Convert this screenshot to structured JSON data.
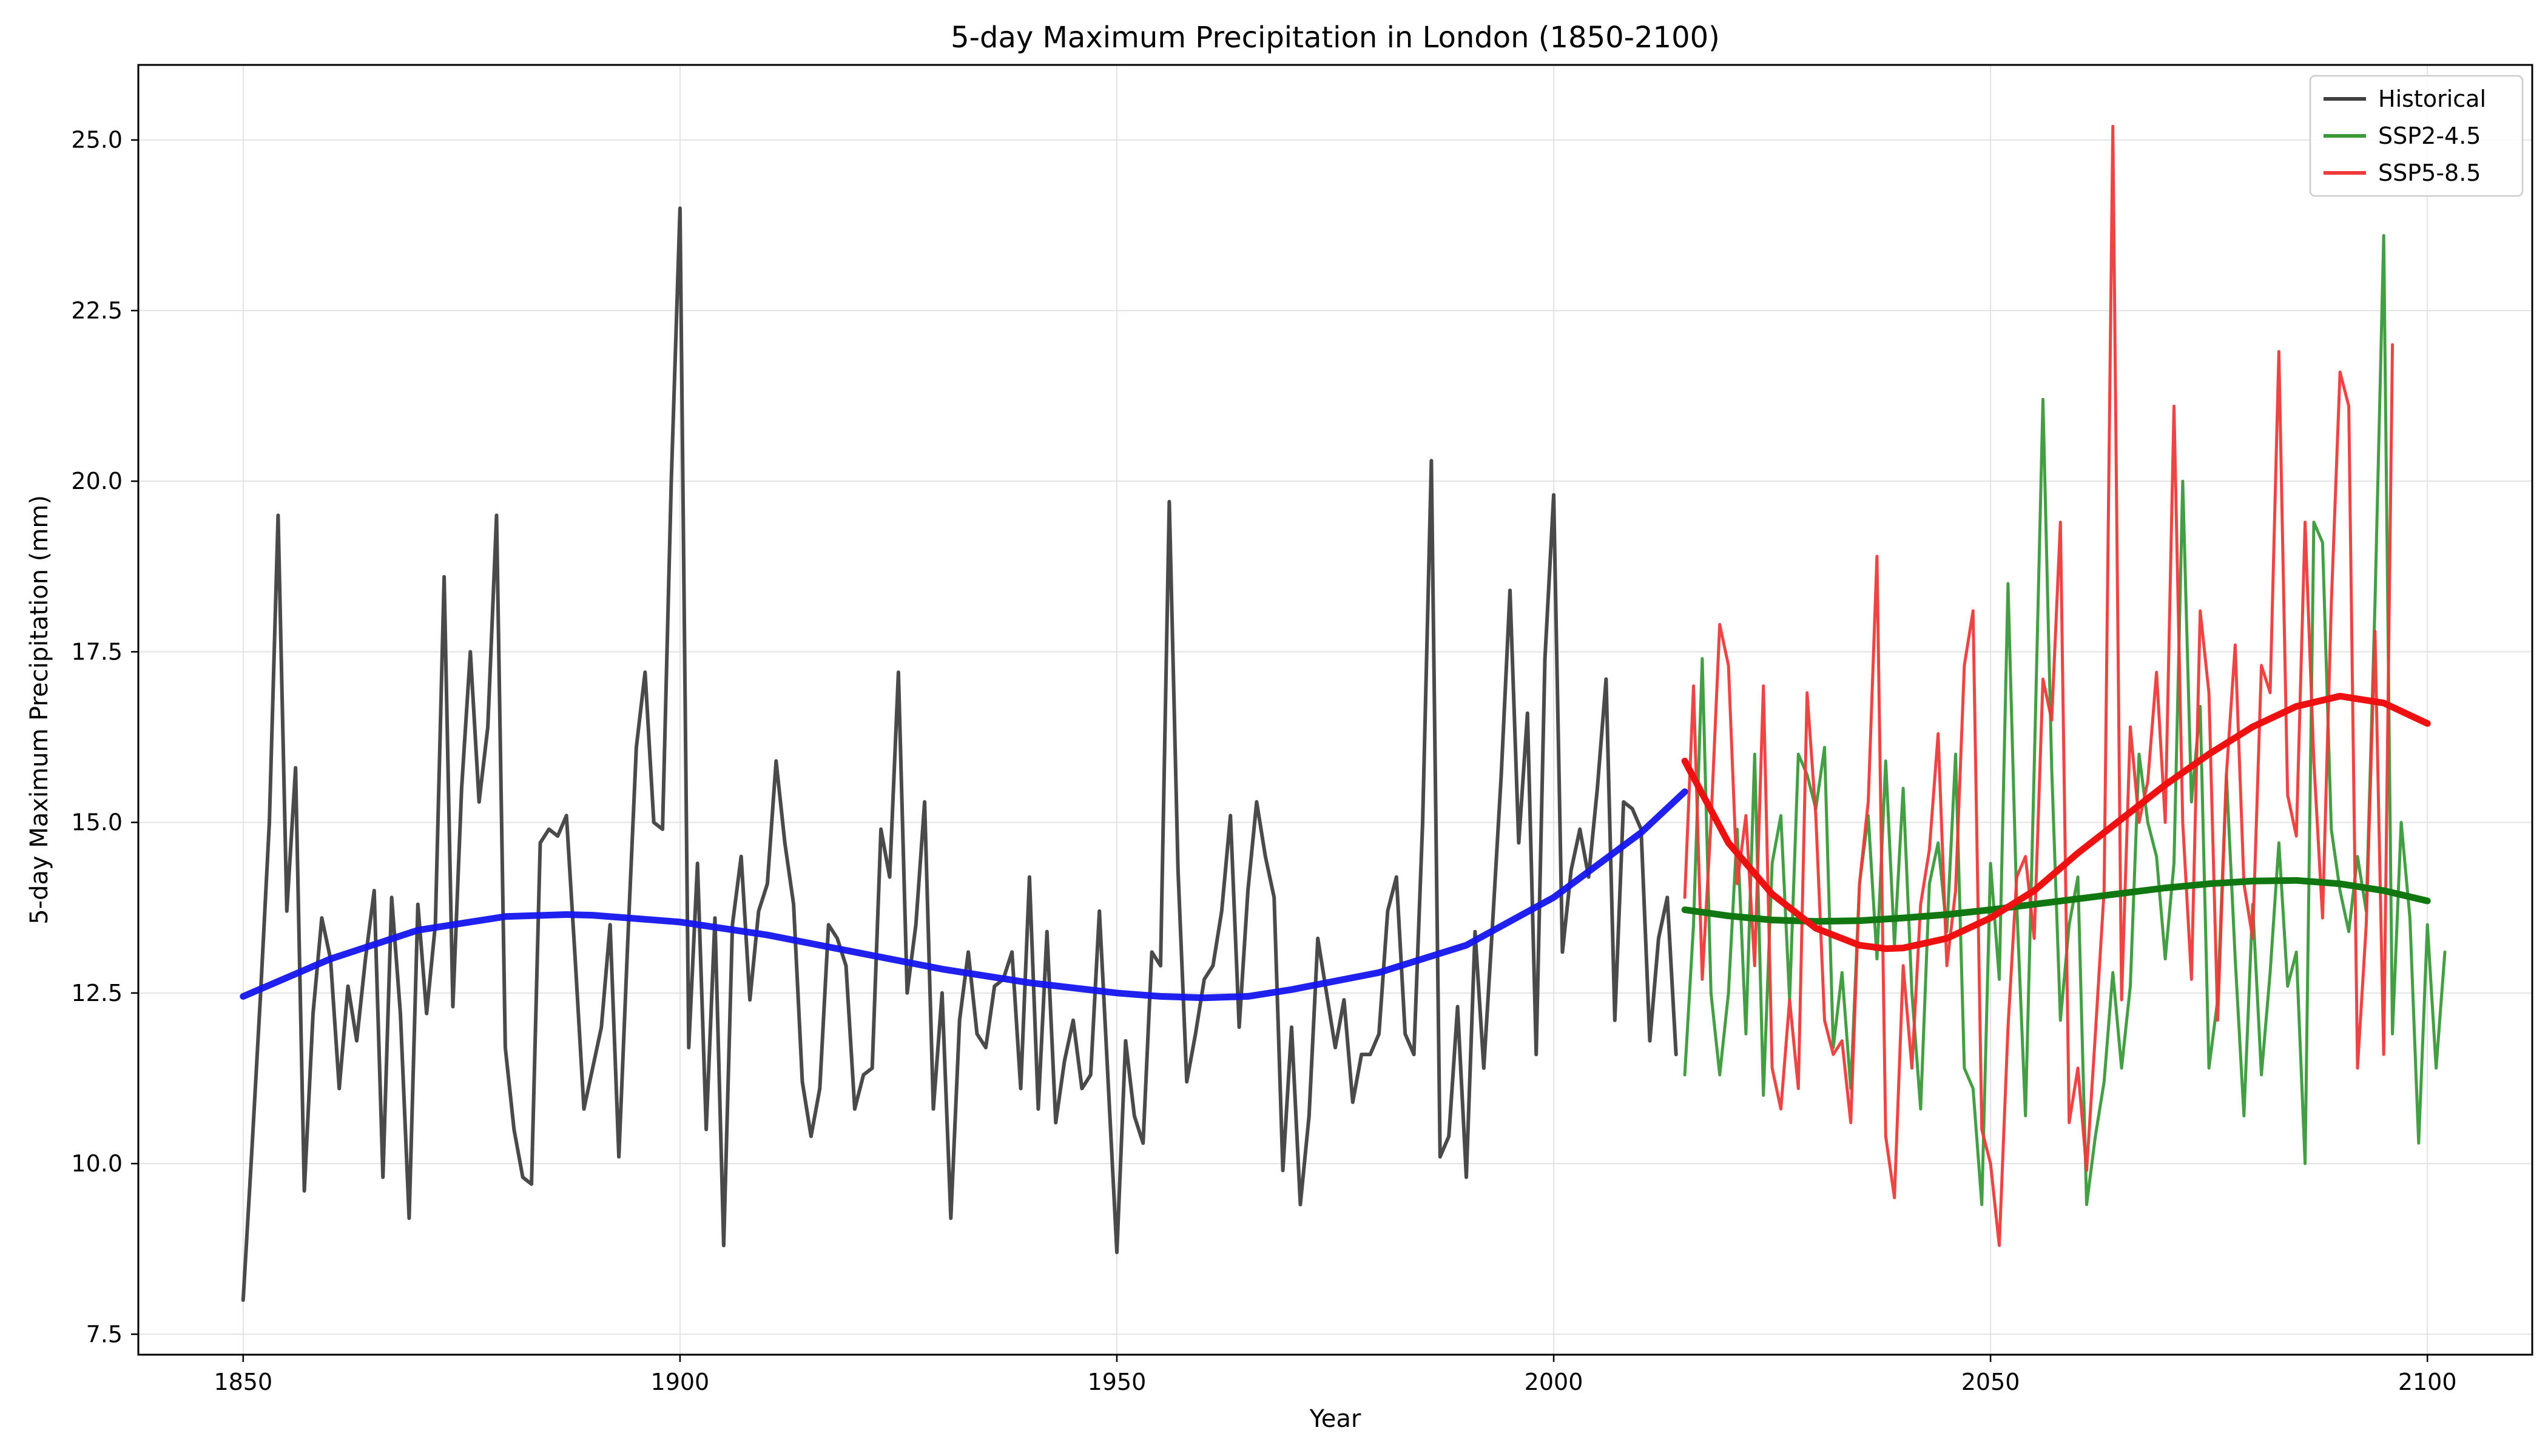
{
  "chart_data": {
    "type": "line",
    "title": "5-day Maximum Precipitation in London (1850-2100)",
    "xlabel": "Year",
    "ylabel": "5-day Maximum Precipitation (mm)",
    "xlim": [
      1838,
      2112
    ],
    "ylim": [
      7.2,
      26.1
    ],
    "xticks": [
      1850,
      1900,
      1950,
      2000,
      2050,
      2100
    ],
    "xtick_labels": [
      "1850",
      "1900",
      "1950",
      "2000",
      "2050",
      "2100"
    ],
    "yticks": [
      7.5,
      10.0,
      12.5,
      15.0,
      17.5,
      20.0,
      22.5,
      25.0
    ],
    "ytick_labels": [
      "7.5",
      "10.0",
      "12.5",
      "15.0",
      "17.5",
      "20.0",
      "22.5",
      "25.0"
    ],
    "grid": true,
    "legend_position": "top-right",
    "legend": [
      {
        "label": "Historical",
        "color": "#404040"
      },
      {
        "label": "SSP2-4.5",
        "color": "#3a9a3a"
      },
      {
        "label": "SSP5-8.5",
        "color": "#ee3a3a"
      }
    ],
    "series": [
      {
        "name": "Historical",
        "color": "#404040",
        "x_start": 1850,
        "x_step": 1,
        "values": [
          8.0,
          10.2,
          12.5,
          15.0,
          19.5,
          13.7,
          15.8,
          9.6,
          12.2,
          13.6,
          13.0,
          11.1,
          12.6,
          11.8,
          13.0,
          14.0,
          9.8,
          13.9,
          12.2,
          9.2,
          13.8,
          12.2,
          13.5,
          18.6,
          12.3,
          15.5,
          17.5,
          15.3,
          16.4,
          19.5,
          11.7,
          10.5,
          9.8,
          9.7,
          14.7,
          14.9,
          14.8,
          15.1,
          13.0,
          10.8,
          11.4,
          12.0,
          13.5,
          10.1,
          13.2,
          16.1,
          17.2,
          15.0,
          14.9,
          20.0,
          24.0,
          11.7,
          14.4,
          10.5,
          13.6,
          8.8,
          13.5,
          14.5,
          12.4,
          13.7,
          14.1,
          15.9,
          14.7,
          13.8,
          11.2,
          10.4,
          11.1,
          13.5,
          13.3,
          12.9,
          10.8,
          11.3,
          11.4,
          14.9,
          14.2,
          17.2,
          12.5,
          13.5,
          15.3,
          10.8,
          12.5,
          9.2,
          12.1,
          13.1,
          11.9,
          11.7,
          12.6,
          12.7,
          13.1,
          11.1,
          14.2,
          10.8,
          13.4,
          10.6,
          11.5,
          12.1,
          11.1,
          11.3,
          13.7,
          11.2,
          8.7,
          11.8,
          10.7,
          10.3,
          13.1,
          12.9,
          19.7,
          14.3,
          11.2,
          11.9,
          12.7,
          12.9,
          13.7,
          15.1,
          12.0,
          14.0,
          15.3,
          14.5,
          13.9,
          9.9,
          12.0,
          9.4,
          10.7,
          13.3,
          12.5,
          11.7,
          12.4,
          10.9,
          11.6,
          11.6,
          11.9,
          13.7,
          14.2,
          11.9,
          11.6,
          15.0,
          20.3,
          10.1,
          10.4,
          12.3,
          9.8,
          13.4,
          11.4,
          13.5,
          15.7,
          18.4,
          14.7,
          16.6,
          11.6,
          17.4,
          19.8,
          13.1,
          14.3,
          14.9,
          14.2,
          15.5,
          17.1,
          12.1,
          15.3,
          15.2,
          14.9,
          11.8,
          13.3,
          13.9,
          11.6
        ]
      },
      {
        "name": "SSP2-4.5",
        "color": "#3a9a3a",
        "x_start": 2015,
        "x_step": 1,
        "values": [
          11.3,
          13.5,
          17.4,
          12.5,
          11.3,
          12.5,
          14.9,
          11.9,
          16.0,
          11.0,
          14.4,
          15.1,
          12.4,
          16.0,
          15.7,
          15.2,
          16.1,
          11.7,
          12.8,
          11.1,
          14.1,
          15.1,
          13.0,
          15.9,
          13.2,
          15.5,
          12.5,
          10.8,
          14.1,
          14.7,
          13.4,
          16.0,
          11.4,
          11.1,
          9.4,
          14.4,
          12.7,
          18.5,
          13.8,
          10.7,
          15.8,
          21.2,
          15.8,
          12.1,
          13.5,
          14.2,
          9.4,
          10.4,
          11.2,
          12.8,
          11.4,
          12.6,
          16.0,
          15.0,
          14.5,
          13.0,
          14.4,
          20.0,
          15.3,
          16.7,
          11.4,
          12.4,
          15.7,
          13.0,
          10.7,
          13.8,
          11.3,
          12.8,
          14.7,
          12.6,
          13.1,
          10.0,
          19.4,
          19.1,
          14.9,
          14.0,
          13.4,
          14.5,
          13.7,
          18.2,
          23.6,
          11.9,
          15.0,
          13.6,
          10.3,
          13.5,
          11.4,
          13.1
        ]
      },
      {
        "name": "SSP5-8.5",
        "color": "#ee3a3a",
        "x_start": 2015,
        "x_step": 1,
        "values": [
          13.9,
          17.0,
          12.7,
          15.0,
          17.9,
          17.3,
          14.1,
          15.1,
          12.9,
          17.0,
          11.4,
          10.8,
          12.4,
          11.1,
          16.9,
          15.1,
          12.1,
          11.6,
          11.8,
          10.6,
          14.1,
          15.3,
          18.9,
          10.4,
          9.5,
          12.9,
          11.4,
          13.8,
          14.6,
          16.3,
          12.9,
          14.0,
          17.3,
          18.1,
          10.5,
          10.0,
          8.8,
          12.0,
          14.2,
          14.5,
          13.3,
          17.1,
          16.5,
          19.4,
          10.6,
          11.4,
          9.9,
          11.9,
          14.0,
          25.2,
          12.4,
          16.4,
          15.0,
          15.6,
          17.2,
          15.0,
          21.1,
          15.0,
          12.7,
          18.1,
          16.9,
          12.1,
          15.7,
          17.6,
          14.1,
          13.3,
          17.3,
          16.9,
          21.9,
          15.4,
          14.8,
          19.4,
          15.9,
          13.6,
          18.2,
          21.6,
          21.1,
          11.4,
          13.5,
          17.8,
          11.6,
          22.0
        ]
      },
      {
        "name": "Historical trend",
        "color": "#1515ee",
        "x": [
          1850,
          1860,
          1870,
          1880,
          1887,
          1890,
          1900,
          1910,
          1920,
          1930,
          1940,
          1950,
          1955,
          1960,
          1965,
          1970,
          1980,
          1990,
          2000,
          2010,
          2015
        ],
        "values": [
          12.45,
          13.0,
          13.42,
          13.62,
          13.65,
          13.64,
          13.54,
          13.35,
          13.1,
          12.85,
          12.65,
          12.5,
          12.45,
          12.43,
          12.45,
          12.55,
          12.8,
          13.2,
          13.9,
          14.85,
          15.45
        ]
      },
      {
        "name": "SSP2-4.5 trend",
        "color": "#117711",
        "x": [
          2015,
          2020,
          2025,
          2030,
          2035,
          2040,
          2045,
          2050,
          2055,
          2060,
          2065,
          2070,
          2075,
          2080,
          2085,
          2090,
          2095,
          2100
        ],
        "values": [
          13.72,
          13.63,
          13.57,
          13.55,
          13.56,
          13.6,
          13.65,
          13.72,
          13.8,
          13.88,
          13.96,
          14.04,
          14.1,
          14.14,
          14.15,
          14.1,
          14.0,
          13.85
        ]
      },
      {
        "name": "SSP5-8.5 trend",
        "color": "#ee1111",
        "x": [
          2015,
          2020,
          2025,
          2030,
          2035,
          2038,
          2040,
          2045,
          2050,
          2055,
          2060,
          2065,
          2070,
          2075,
          2080,
          2085,
          2090,
          2095,
          2100
        ],
        "values": [
          15.9,
          14.7,
          13.95,
          13.45,
          13.2,
          13.15,
          13.16,
          13.3,
          13.6,
          14.0,
          14.55,
          15.05,
          15.55,
          16.0,
          16.4,
          16.7,
          16.85,
          16.75,
          16.45
        ]
      }
    ]
  }
}
